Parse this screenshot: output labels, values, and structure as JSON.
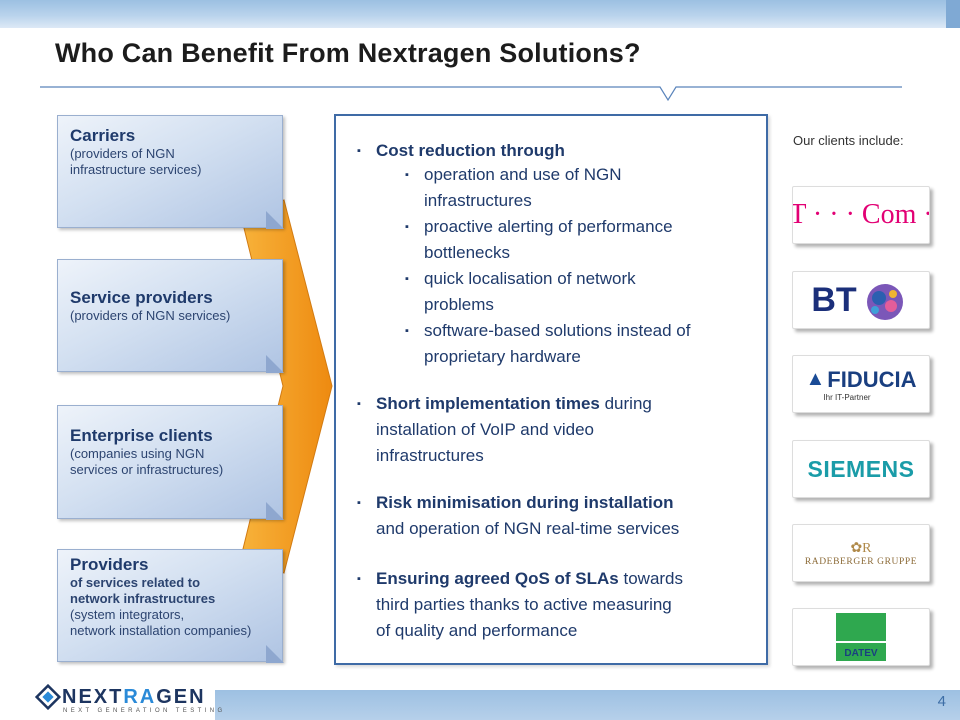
{
  "title": "Who Can Benefit From Nextragen Solutions?",
  "left_boxes": [
    {
      "head": "Carriers",
      "sub1": "(providers of NGN",
      "sub2": "infrastructure services)"
    },
    {
      "head": "Service providers",
      "sub1": "(providers of NGN services)"
    },
    {
      "head": "Enterprise clients",
      "sub1": "(companies using NGN",
      "sub2": "services or infrastructures)"
    },
    {
      "head": "Providers",
      "bold1": "of services related to",
      "bold2": "network infrastructures",
      "sub1": "(system integrators,",
      "sub2": "network installation  companies)"
    }
  ],
  "main": {
    "cost_head": "Cost reduction through",
    "cost_items": [
      [
        "operation and use of NGN",
        "infrastructures"
      ],
      [
        "proactive alerting of performance",
        "bottlenecks"
      ],
      [
        "quick localisation of network",
        "problems"
      ],
      [
        "software-based solutions instead of",
        "proprietary hardware"
      ]
    ],
    "short_bold": "Short implementation times",
    "short_rest1": " during",
    "short_rest2": "installation of VoIP and video",
    "short_rest3": "infrastructures",
    "risk_bold": "Risk minimisation during installation",
    "risk_rest": "and operation of NGN real-time services",
    "qos_bold": "Ensuring agreed QoS of SLAs",
    "qos_rest1": " towards",
    "qos_rest2": "third parties thanks to active measuring",
    "qos_rest3": "of quality and performance"
  },
  "clients_label": "Our clients include:",
  "clients": {
    "tcom": "T · · · Com ·",
    "bt": "BT",
    "fiducia": "FIDUCIA",
    "fiducia_sub": "Ihr IT-Partner",
    "siemens": "SIEMENS",
    "radeberger": "RADEBERGER GRUPPE",
    "datev": "DATEV"
  },
  "brand": {
    "name_a": "NEXT",
    "name_x": "RA",
    "name_b": "GEN",
    "tagline": "NEXT GENERATION TESTING"
  },
  "page_number": "4",
  "colors": {
    "navy": "#1f3a6b",
    "accent_blue": "#3f6ba6",
    "orange": "#f39a1e",
    "tcom_magenta": "#e20074",
    "datev_green": "#2fa84f"
  },
  "icons": {
    "bullet": "▪"
  }
}
